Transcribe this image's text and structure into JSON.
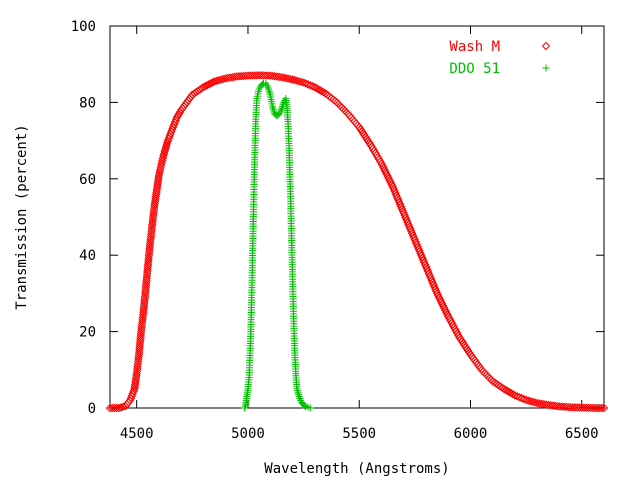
{
  "chart_data": {
    "type": "scatter",
    "title": "",
    "xlabel": "Wavelength (Angstroms)",
    "ylabel": "Transmission (percent)",
    "xlim": [
      4380,
      6600
    ],
    "ylim": [
      0,
      100
    ],
    "xticks": [
      4500,
      5000,
      5500,
      6000,
      6500
    ],
    "yticks": [
      0,
      20,
      40,
      60,
      80,
      100
    ],
    "legend_position": "top-right",
    "grid": false,
    "series": [
      {
        "name": "Wash M",
        "marker": "diamond",
        "color": "#ff0000",
        "points": [
          [
            4380,
            0
          ],
          [
            4420,
            0
          ],
          [
            4450,
            0.5
          ],
          [
            4470,
            2
          ],
          [
            4490,
            5
          ],
          [
            4500,
            9
          ],
          [
            4510,
            14
          ],
          [
            4520,
            20
          ],
          [
            4530,
            25
          ],
          [
            4540,
            31
          ],
          [
            4550,
            37
          ],
          [
            4560,
            43
          ],
          [
            4570,
            48
          ],
          [
            4580,
            53
          ],
          [
            4590,
            57
          ],
          [
            4600,
            61
          ],
          [
            4620,
            66
          ],
          [
            4640,
            70
          ],
          [
            4660,
            73
          ],
          [
            4680,
            76
          ],
          [
            4700,
            78
          ],
          [
            4750,
            82
          ],
          [
            4800,
            84
          ],
          [
            4850,
            85.5
          ],
          [
            4900,
            86.3
          ],
          [
            4950,
            86.8
          ],
          [
            5000,
            87
          ],
          [
            5050,
            87.1
          ],
          [
            5100,
            87
          ],
          [
            5150,
            86.6
          ],
          [
            5200,
            86
          ],
          [
            5250,
            85.2
          ],
          [
            5300,
            84
          ],
          [
            5350,
            82.3
          ],
          [
            5400,
            80
          ],
          [
            5450,
            77
          ],
          [
            5500,
            73.5
          ],
          [
            5550,
            69
          ],
          [
            5600,
            64
          ],
          [
            5650,
            58
          ],
          [
            5700,
            51
          ],
          [
            5750,
            44
          ],
          [
            5800,
            37
          ],
          [
            5850,
            30
          ],
          [
            5900,
            24
          ],
          [
            5950,
            18.5
          ],
          [
            6000,
            14
          ],
          [
            6050,
            10
          ],
          [
            6100,
            7
          ],
          [
            6150,
            5
          ],
          [
            6200,
            3.3
          ],
          [
            6250,
            2.1
          ],
          [
            6300,
            1.3
          ],
          [
            6350,
            0.8
          ],
          [
            6400,
            0.4
          ],
          [
            6450,
            0.2
          ],
          [
            6500,
            0.1
          ],
          [
            6550,
            0
          ],
          [
            6600,
            0
          ]
        ]
      },
      {
        "name": "DDO 51",
        "marker": "plus",
        "color": "#00c000",
        "points": [
          [
            4985,
            0
          ],
          [
            4990,
            1
          ],
          [
            4995,
            3
          ],
          [
            5000,
            5
          ],
          [
            5005,
            8
          ],
          [
            5010,
            15
          ],
          [
            5015,
            25
          ],
          [
            5020,
            38
          ],
          [
            5025,
            52
          ],
          [
            5030,
            65
          ],
          [
            5035,
            75
          ],
          [
            5040,
            81
          ],
          [
            5050,
            83.5
          ],
          [
            5060,
            84.5
          ],
          [
            5070,
            85
          ],
          [
            5080,
            85
          ],
          [
            5090,
            84
          ],
          [
            5100,
            82
          ],
          [
            5110,
            79
          ],
          [
            5120,
            77
          ],
          [
            5130,
            76.5
          ],
          [
            5140,
            77
          ],
          [
            5150,
            78
          ],
          [
            5160,
            80
          ],
          [
            5170,
            81
          ],
          [
            5175,
            79
          ],
          [
            5180,
            75
          ],
          [
            5185,
            68
          ],
          [
            5190,
            58
          ],
          [
            5195,
            47
          ],
          [
            5200,
            35
          ],
          [
            5205,
            24
          ],
          [
            5210,
            15
          ],
          [
            5215,
            9
          ],
          [
            5220,
            5
          ],
          [
            5230,
            3
          ],
          [
            5240,
            1.5
          ],
          [
            5250,
            0.8
          ],
          [
            5260,
            0.4
          ],
          [
            5270,
            0.2
          ],
          [
            5280,
            0
          ]
        ]
      }
    ]
  }
}
